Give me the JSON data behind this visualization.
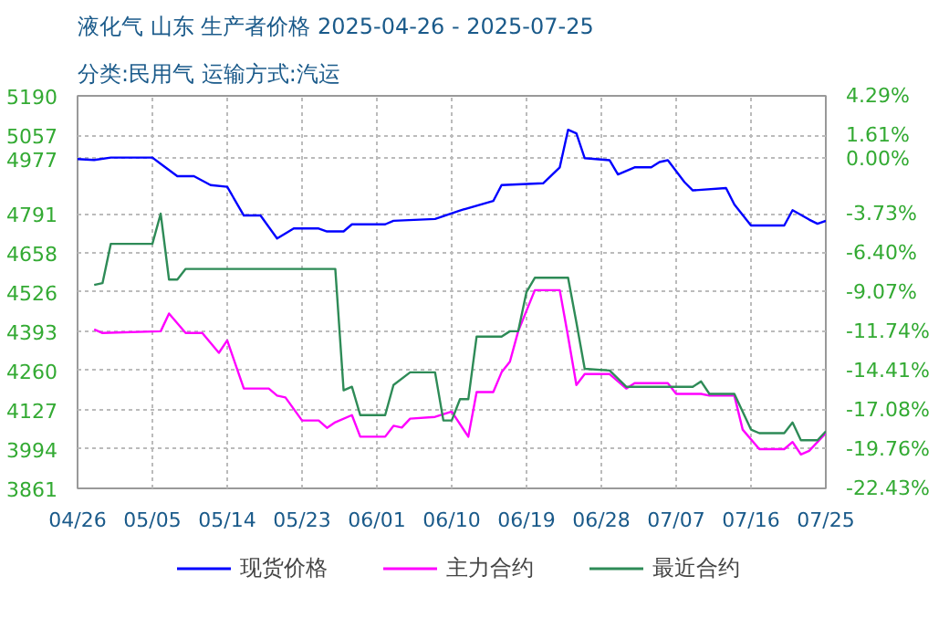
{
  "chart_data": {
    "type": "line",
    "title": "液化气 山东 生产者价格 2025-04-26 - 2025-07-25",
    "subtitle": "分类:民用气 运输方式:汽运",
    "xlim": [
      "2025-04-26",
      "2025-07-25"
    ],
    "xticks": [
      {
        "value": "2025-04-26",
        "label": "04/26"
      },
      {
        "value": "2025-05-05",
        "label": "05/05"
      },
      {
        "value": "2025-05-14",
        "label": "05/14"
      },
      {
        "value": "2025-05-23",
        "label": "05/23"
      },
      {
        "value": "2025-06-01",
        "label": "06/01"
      },
      {
        "value": "2025-06-10",
        "label": "06/10"
      },
      {
        "value": "2025-06-19",
        "label": "06/19"
      },
      {
        "value": "2025-06-28",
        "label": "06/28"
      },
      {
        "value": "2025-07-07",
        "label": "07/07"
      },
      {
        "value": "2025-07-16",
        "label": "07/16"
      },
      {
        "value": "2025-07-25",
        "label": "07/25"
      }
    ],
    "ylim": [
      3861,
      5190
    ],
    "yticks": [
      3861,
      3994,
      4127,
      4260,
      4393,
      4526,
      4658,
      4791,
      4977,
      5057,
      5190
    ],
    "y2lim": [
      -22.43,
      4.29
    ],
    "y2ticks": [
      {
        "value": -22.43,
        "label": "-22.43%"
      },
      {
        "value": -19.76,
        "label": "-19.76%"
      },
      {
        "value": -17.08,
        "label": "-17.08%"
      },
      {
        "value": -14.41,
        "label": "-14.41%"
      },
      {
        "value": -11.74,
        "label": "-11.74%"
      },
      {
        "value": -9.07,
        "label": "-9.07%"
      },
      {
        "value": -6.4,
        "label": "-6.40%"
      },
      {
        "value": -3.73,
        "label": "-3.73%"
      },
      {
        "value": 0,
        "label": "0.00%"
      },
      {
        "value": 1.61,
        "label": "1.61%"
      },
      {
        "value": 4.29,
        "label": "4.29%"
      }
    ],
    "grid": true,
    "legend": "bottom",
    "series": [
      {
        "name": "现货价格",
        "color": "#0000ff",
        "x": [
          "2025-04-26",
          "2025-04-28",
          "2025-04-30",
          "2025-05-05",
          "2025-05-06",
          "2025-05-08",
          "2025-05-10",
          "2025-05-12",
          "2025-05-14",
          "2025-05-16",
          "2025-05-18",
          "2025-05-20",
          "2025-05-22",
          "2025-05-25",
          "2025-05-26",
          "2025-05-28",
          "2025-05-29",
          "2025-06-02",
          "2025-06-03",
          "2025-06-08",
          "2025-06-11",
          "2025-06-15",
          "2025-06-16",
          "2025-06-21",
          "2025-06-23",
          "2025-06-24",
          "2025-06-25",
          "2025-06-26",
          "2025-06-29",
          "2025-06-30",
          "2025-07-02",
          "2025-07-04",
          "2025-07-05",
          "2025-07-06",
          "2025-07-08",
          "2025-07-09",
          "2025-07-13",
          "2025-07-14",
          "2025-07-16",
          "2025-07-20",
          "2025-07-21",
          "2025-07-23",
          "2025-07-24",
          "2025-07-25"
        ],
        "values": [
          4976,
          4973,
          4981,
          4981,
          4960,
          4918,
          4918,
          4888,
          4882,
          4785,
          4785,
          4707,
          4741,
          4741,
          4731,
          4731,
          4755,
          4755,
          4767,
          4773,
          4802,
          4834,
          4888,
          4894,
          4948,
          5075,
          5063,
          4979,
          4972,
          4924,
          4948,
          4948,
          4966,
          4972,
          4898,
          4870,
          4878,
          4822,
          4751,
          4751,
          4803,
          4771,
          4757,
          4767
        ]
      },
      {
        "name": "主力合约",
        "color": "#ff00ff",
        "x": [
          "2025-04-28",
          "2025-04-29",
          "2025-05-06",
          "2025-05-07",
          "2025-05-09",
          "2025-05-11",
          "2025-05-13",
          "2025-05-14",
          "2025-05-16",
          "2025-05-19",
          "2025-05-20",
          "2025-05-21",
          "2025-05-23",
          "2025-05-25",
          "2025-05-26",
          "2025-05-27",
          "2025-05-29",
          "2025-05-30",
          "2025-06-02",
          "2025-06-03",
          "2025-06-04",
          "2025-06-05",
          "2025-06-08",
          "2025-06-10",
          "2025-06-12",
          "2025-06-13",
          "2025-06-15",
          "2025-06-16",
          "2025-06-17",
          "2025-06-18",
          "2025-06-20",
          "2025-06-23",
          "2025-06-24",
          "2025-06-25",
          "2025-06-26",
          "2025-06-29",
          "2025-07-01",
          "2025-07-02",
          "2025-07-06",
          "2025-07-07",
          "2025-07-10",
          "2025-07-11",
          "2025-07-14",
          "2025-07-15",
          "2025-07-17",
          "2025-07-20",
          "2025-07-21",
          "2025-07-22",
          "2025-07-23",
          "2025-07-25"
        ],
        "values": [
          4399,
          4387,
          4393,
          4453,
          4387,
          4387,
          4320,
          4362,
          4199,
          4199,
          4175,
          4169,
          4091,
          4091,
          4066,
          4085,
          4109,
          4036,
          4036,
          4073,
          4067,
          4097,
          4103,
          4121,
          4036,
          4187,
          4187,
          4254,
          4290,
          4393,
          4532,
          4532,
          4375,
          4211,
          4248,
          4248,
          4199,
          4217,
          4217,
          4181,
          4181,
          4175,
          4175,
          4060,
          3994,
          3994,
          4018,
          3976,
          3988,
          4048
        ]
      },
      {
        "name": "最近合约",
        "color": "#2e8b57",
        "x": [
          "2025-04-28",
          "2025-04-29",
          "2025-04-30",
          "2025-05-05",
          "2025-05-06",
          "2025-05-07",
          "2025-05-08",
          "2025-05-09",
          "2025-05-27",
          "2025-05-28",
          "2025-05-29",
          "2025-05-30",
          "2025-06-02",
          "2025-06-03",
          "2025-06-05",
          "2025-06-08",
          "2025-06-09",
          "2025-06-10",
          "2025-06-11",
          "2025-06-12",
          "2025-06-13",
          "2025-06-16",
          "2025-06-17",
          "2025-06-18",
          "2025-06-19",
          "2025-06-20",
          "2025-06-24",
          "2025-06-25",
          "2025-06-26",
          "2025-06-29",
          "2025-07-01",
          "2025-07-09",
          "2025-07-10",
          "2025-07-11",
          "2025-07-14",
          "2025-07-16",
          "2025-07-17",
          "2025-07-20",
          "2025-07-21",
          "2025-07-22",
          "2025-07-24",
          "2025-07-25"
        ],
        "values": [
          4550,
          4556,
          4689,
          4689,
          4791,
          4568,
          4568,
          4604,
          4604,
          4193,
          4205,
          4109,
          4109,
          4211,
          4254,
          4254,
          4091,
          4091,
          4163,
          4163,
          4375,
          4375,
          4393,
          4393,
          4526,
          4574,
          4574,
          4423,
          4266,
          4260,
          4205,
          4205,
          4223,
          4181,
          4181,
          4060,
          4048,
          4048,
          4084,
          4024,
          4024,
          4054
        ]
      }
    ]
  }
}
